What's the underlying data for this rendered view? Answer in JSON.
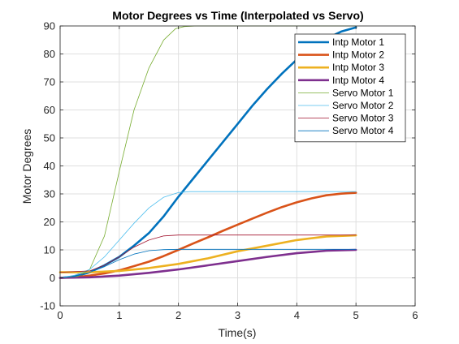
{
  "chart_data": {
    "type": "line",
    "title": "Motor Degrees vs Time (Interpolated vs Servo)",
    "xlabel": "Time(s)",
    "ylabel": "Motor Degrees",
    "xlim": [
      0,
      6
    ],
    "ylim": [
      -10,
      90
    ],
    "xticks": [
      "0",
      "1",
      "2",
      "3",
      "4",
      "5",
      "6"
    ],
    "yticks": [
      "-10",
      "0",
      "10",
      "20",
      "30",
      "40",
      "50",
      "60",
      "70",
      "80",
      "90"
    ],
    "grid": true,
    "legend_position": "top-right",
    "series": [
      {
        "name": "Intp Motor 1",
        "color": "#0072BD",
        "thick": true,
        "x": [
          0,
          0.25,
          0.5,
          0.75,
          1.0,
          1.25,
          1.5,
          1.75,
          2.0,
          2.25,
          2.5,
          2.75,
          3.0,
          3.25,
          3.5,
          3.75,
          4.0,
          4.25,
          4.5,
          4.75,
          5.0
        ],
        "y": [
          0,
          0.5,
          2,
          4.5,
          7.5,
          11.5,
          16,
          22,
          29,
          35.5,
          42,
          48.5,
          55,
          61.5,
          67.5,
          73,
          78,
          82,
          85.5,
          88,
          89.5
        ]
      },
      {
        "name": "Intp Motor 2",
        "color": "#D95319",
        "thick": true,
        "x": [
          0,
          0.25,
          0.5,
          0.75,
          1.0,
          1.25,
          1.5,
          1.75,
          2.0,
          2.25,
          2.5,
          2.75,
          3.0,
          3.25,
          3.5,
          3.75,
          4.0,
          4.25,
          4.5,
          4.75,
          5.0
        ],
        "y": [
          0,
          0.2,
          0.8,
          1.6,
          2.7,
          4.2,
          5.8,
          7.8,
          10,
          12.3,
          14.5,
          16.8,
          19,
          21.2,
          23.3,
          25.3,
          27,
          28.4,
          29.5,
          30.1,
          30.4
        ]
      },
      {
        "name": "Intp Motor 3",
        "color": "#EDB120",
        "thick": true,
        "x": [
          0,
          0.5,
          1.0,
          1.5,
          2.0,
          2.5,
          3.0,
          3.5,
          4.0,
          4.5,
          5.0
        ],
        "y": [
          2,
          2,
          2.5,
          3.5,
          5,
          7,
          9.5,
          11.5,
          13.5,
          14.8,
          15.2
        ]
      },
      {
        "name": "Intp Motor 4",
        "color": "#7E2F8E",
        "thick": true,
        "x": [
          0,
          0.5,
          1.0,
          1.5,
          2.0,
          2.5,
          3.0,
          3.5,
          4.0,
          4.5,
          5.0
        ],
        "y": [
          0,
          0.2,
          0.8,
          1.8,
          3,
          4.5,
          6,
          7.5,
          8.8,
          9.7,
          10
        ]
      },
      {
        "name": "Servo Motor 1",
        "color": "#77AC30",
        "thick": false,
        "x": [
          0,
          0.3,
          0.5,
          0.75,
          1.0,
          1.25,
          1.5,
          1.75,
          1.95,
          2.1,
          2.3,
          3.0,
          4.0,
          5.0
        ],
        "y": [
          0,
          0.5,
          3,
          15,
          38,
          60,
          75,
          85,
          89,
          89.8,
          90,
          90,
          90,
          90
        ]
      },
      {
        "name": "Servo Motor 2",
        "color": "#4DBEEE",
        "thick": false,
        "x": [
          0,
          0.25,
          0.5,
          0.75,
          1.0,
          1.25,
          1.5,
          1.75,
          2.0,
          2.2,
          2.5,
          3.0,
          4.0,
          5.0
        ],
        "y": [
          0,
          1,
          3,
          7.5,
          13.5,
          19.5,
          25,
          28.8,
          30.5,
          30.8,
          30.8,
          30.8,
          30.8,
          30.8
        ]
      },
      {
        "name": "Servo Motor 3",
        "color": "#A2142F",
        "thick": false,
        "x": [
          0,
          0.5,
          0.75,
          1.0,
          1.25,
          1.5,
          1.75,
          2.0,
          2.5,
          3.0,
          4.0,
          5.0
        ],
        "y": [
          2,
          2.5,
          4.5,
          7.5,
          11,
          13.5,
          15,
          15.3,
          15.3,
          15.3,
          15.3,
          15.3
        ]
      },
      {
        "name": "Servo Motor 4",
        "color": "#0072BD",
        "thick": false,
        "x": [
          0,
          0.25,
          0.5,
          0.75,
          1.0,
          1.25,
          1.5,
          1.75,
          2.0,
          2.5,
          3.0,
          4.0,
          5.0
        ],
        "y": [
          0,
          0.5,
          2,
          4,
          6.5,
          8.5,
          9.7,
          10.1,
          10.2,
          10.2,
          10.2,
          10.2,
          10.2
        ]
      }
    ]
  }
}
